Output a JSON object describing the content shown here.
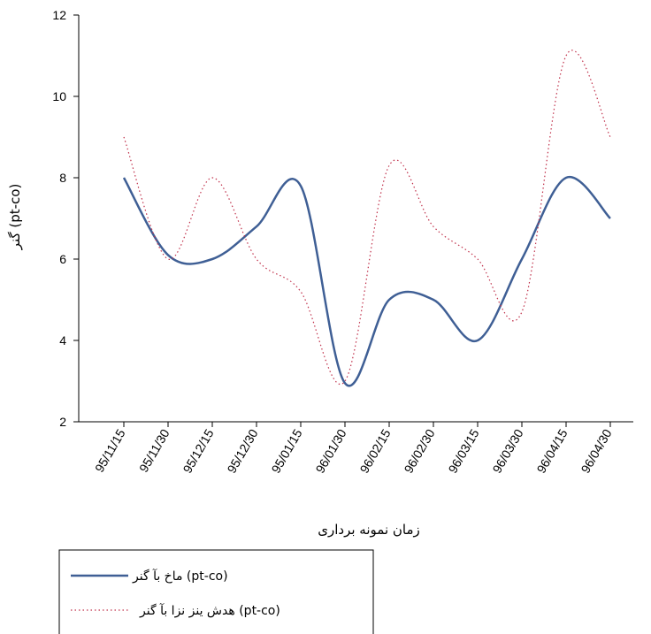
{
  "chart_data": {
    "type": "line",
    "categories": [
      "95/11/15",
      "95/11/30",
      "95/12/15",
      "95/12/30",
      "95/01/15",
      "96/01/30",
      "96/02/15",
      "96/02/30",
      "96/03/15",
      "96/03/30",
      "96/04/15",
      "96/04/30"
    ],
    "series": [
      {
        "name": "ماخ بآ گنر (pt-co)",
        "values": [
          8.0,
          6.1,
          6.0,
          6.8,
          7.8,
          2.95,
          5.0,
          5.0,
          4.0,
          6.0,
          8.0,
          7.0
        ],
        "color": "#3f5f95",
        "style": "solid"
      },
      {
        "name": "هدش ینز نزا بآ گنر (pt-co)",
        "values": [
          9.0,
          6.0,
          8.0,
          6.0,
          5.2,
          3.0,
          8.3,
          6.8,
          6.0,
          4.7,
          11.0,
          9.0
        ],
        "color": "#c0304a",
        "style": "dotted"
      }
    ],
    "ylabel": "گنر (pt-co)",
    "xlabel": "زمان نمونه برداری",
    "ylim": [
      2,
      12
    ],
    "yticks": [
      2,
      4,
      6,
      8,
      10,
      12
    ],
    "grid": false,
    "legend": "bottom-left"
  }
}
